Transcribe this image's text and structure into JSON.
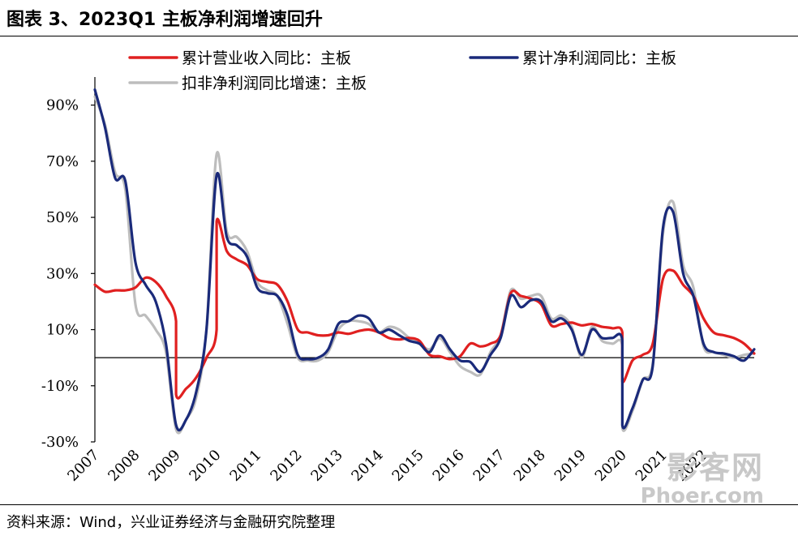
{
  "header": {
    "title": "图表 3、2023Q1 主板净利润增速回升"
  },
  "footer": {
    "source": "资料来源：Wind，兴业证券经济与金融研究院整理"
  },
  "watermark": {
    "cn": "影客网",
    "en": "Phoer.com"
  },
  "colors": {
    "revenue": "#e02020",
    "profit": "#1a2a7a",
    "deducted": "#bdbdbd",
    "axis": "#000000"
  },
  "chart_data": {
    "type": "line",
    "title": "",
    "xlabel": "",
    "ylabel": "",
    "ylim": [
      -30,
      100
    ],
    "xlim": [
      2007,
      2023.25
    ],
    "yticks": [
      -30,
      -10,
      10,
      30,
      50,
      70,
      90
    ],
    "ytick_labels": [
      "-30%",
      "-10%",
      "10%",
      "30%",
      "50%",
      "70%",
      "90%"
    ],
    "xtick_labels": [
      "2007",
      "2008",
      "2009",
      "2010",
      "2011",
      "2012",
      "2013",
      "2014",
      "2015",
      "2016",
      "2017",
      "2018",
      "2019",
      "2020",
      "2021",
      "2022"
    ],
    "legend": {
      "position": "top"
    },
    "series": [
      {
        "name": "累计营业收入同比：主板",
        "color_key": "revenue",
        "points": [
          [
            2007,
            26
          ],
          [
            2007.25,
            23.5
          ],
          [
            2007.5,
            24
          ],
          [
            2007.75,
            24
          ],
          [
            2008,
            25
          ],
          [
            2008.25,
            28.5
          ],
          [
            2008.5,
            27
          ],
          [
            2008.75,
            22
          ],
          [
            2009,
            13
          ],
          [
            2009,
            -13
          ],
          [
            2009.25,
            -11
          ],
          [
            2009.5,
            -7
          ],
          [
            2009.75,
            0
          ],
          [
            2010,
            10
          ],
          [
            2010,
            48.5
          ],
          [
            2010.25,
            38
          ],
          [
            2010.5,
            35
          ],
          [
            2010.75,
            33
          ],
          [
            2011,
            28
          ],
          [
            2011.25,
            27
          ],
          [
            2011.5,
            26
          ],
          [
            2011.75,
            20
          ],
          [
            2012,
            10
          ],
          [
            2012.25,
            9
          ],
          [
            2012.5,
            8
          ],
          [
            2012.75,
            8
          ],
          [
            2013,
            9
          ],
          [
            2013.25,
            8.5
          ],
          [
            2013.5,
            9.5
          ],
          [
            2013.75,
            10
          ],
          [
            2014,
            9
          ],
          [
            2014.25,
            7
          ],
          [
            2014.5,
            6.5
          ],
          [
            2014.75,
            7
          ],
          [
            2015,
            6
          ],
          [
            2015.25,
            1
          ],
          [
            2015.5,
            0.5
          ],
          [
            2015.75,
            -0.5
          ],
          [
            2016,
            0.5
          ],
          [
            2016.25,
            5
          ],
          [
            2016.5,
            4
          ],
          [
            2016.75,
            5
          ],
          [
            2017,
            8
          ],
          [
            2017.25,
            23
          ],
          [
            2017.5,
            22
          ],
          [
            2017.75,
            21
          ],
          [
            2018,
            19
          ],
          [
            2018.25,
            11.5
          ],
          [
            2018.5,
            12
          ],
          [
            2018.75,
            12.5
          ],
          [
            2019,
            11.5
          ],
          [
            2019.25,
            12
          ],
          [
            2019.5,
            11
          ],
          [
            2019.75,
            10.5
          ],
          [
            2020,
            9
          ],
          [
            2020,
            -8.5
          ],
          [
            2020.25,
            -1
          ],
          [
            2020.5,
            1
          ],
          [
            2020.75,
            5
          ],
          [
            2021,
            28
          ],
          [
            2021.25,
            31
          ],
          [
            2021.5,
            26
          ],
          [
            2021.75,
            22
          ],
          [
            2022,
            14
          ],
          [
            2022.25,
            9
          ],
          [
            2022.5,
            8
          ],
          [
            2022.75,
            7
          ],
          [
            2023,
            5
          ],
          [
            2023.25,
            1.5
          ]
        ]
      },
      {
        "name": "累计净利润同比：主板",
        "color_key": "profit",
        "points": [
          [
            2007,
            95.5
          ],
          [
            2007.25,
            82
          ],
          [
            2007.5,
            64
          ],
          [
            2007.75,
            63
          ],
          [
            2008,
            34
          ],
          [
            2008.25,
            26
          ],
          [
            2008.5,
            20
          ],
          [
            2008.75,
            5
          ],
          [
            2009,
            -24
          ],
          [
            2009.25,
            -22
          ],
          [
            2009.5,
            -12
          ],
          [
            2009.75,
            10
          ],
          [
            2010,
            65
          ],
          [
            2010.25,
            43
          ],
          [
            2010.5,
            40
          ],
          [
            2010.75,
            36
          ],
          [
            2011,
            25
          ],
          [
            2011.25,
            23
          ],
          [
            2011.5,
            22
          ],
          [
            2011.75,
            15
          ],
          [
            2012,
            1
          ],
          [
            2012.25,
            -0.5
          ],
          [
            2012.5,
            0
          ],
          [
            2012.75,
            3
          ],
          [
            2013,
            12
          ],
          [
            2013.25,
            13
          ],
          [
            2013.5,
            15
          ],
          [
            2013.75,
            14
          ],
          [
            2014,
            9
          ],
          [
            2014.25,
            10
          ],
          [
            2014.5,
            8
          ],
          [
            2014.75,
            6
          ],
          [
            2015,
            5
          ],
          [
            2015.25,
            2
          ],
          [
            2015.5,
            8
          ],
          [
            2015.75,
            3
          ],
          [
            2016,
            -1
          ],
          [
            2016.25,
            -1.5
          ],
          [
            2016.5,
            -5
          ],
          [
            2016.75,
            1
          ],
          [
            2017,
            7
          ],
          [
            2017.25,
            22
          ],
          [
            2017.5,
            18
          ],
          [
            2017.75,
            20.5
          ],
          [
            2018,
            20
          ],
          [
            2018.25,
            13
          ],
          [
            2018.5,
            14
          ],
          [
            2018.75,
            10
          ],
          [
            2019,
            1
          ],
          [
            2019.25,
            10
          ],
          [
            2019.5,
            7
          ],
          [
            2019.75,
            7
          ],
          [
            2020,
            6
          ],
          [
            2020,
            -24
          ],
          [
            2020.25,
            -18
          ],
          [
            2020.5,
            -8
          ],
          [
            2020.75,
            -3
          ],
          [
            2021,
            46
          ],
          [
            2021.25,
            52
          ],
          [
            2021.5,
            30
          ],
          [
            2021.75,
            22
          ],
          [
            2022,
            5
          ],
          [
            2022.25,
            2
          ],
          [
            2022.5,
            1.5
          ],
          [
            2022.75,
            0.5
          ],
          [
            2023,
            -1
          ],
          [
            2023.25,
            3
          ]
        ]
      },
      {
        "name": "扣非净利润同比增速：主板",
        "color_key": "deducted",
        "points": [
          [
            2007,
            93
          ],
          [
            2007.25,
            83
          ],
          [
            2007.5,
            66
          ],
          [
            2007.75,
            60
          ],
          [
            2008,
            19
          ],
          [
            2008.25,
            15
          ],
          [
            2008.5,
            10
          ],
          [
            2008.75,
            2
          ],
          [
            2009,
            -25.5
          ],
          [
            2009.25,
            -22
          ],
          [
            2009.5,
            -14
          ],
          [
            2009.75,
            10
          ],
          [
            2010,
            72.5
          ],
          [
            2010.25,
            45
          ],
          [
            2010.5,
            43
          ],
          [
            2010.75,
            38
          ],
          [
            2011,
            27
          ],
          [
            2011.25,
            24
          ],
          [
            2011.5,
            22
          ],
          [
            2011.75,
            12
          ],
          [
            2012,
            0
          ],
          [
            2012.25,
            -1
          ],
          [
            2012.5,
            -1
          ],
          [
            2012.75,
            2
          ],
          [
            2013,
            10
          ],
          [
            2013.25,
            13
          ],
          [
            2013.5,
            13
          ],
          [
            2013.75,
            12
          ],
          [
            2014,
            9
          ],
          [
            2014.25,
            11
          ],
          [
            2014.5,
            10
          ],
          [
            2014.75,
            7
          ],
          [
            2015,
            5
          ],
          [
            2015.25,
            3
          ],
          [
            2015.5,
            7
          ],
          [
            2015.75,
            2
          ],
          [
            2016,
            -3
          ],
          [
            2016.25,
            -5
          ],
          [
            2016.5,
            -6
          ],
          [
            2016.75,
            2
          ],
          [
            2017,
            8
          ],
          [
            2017.25,
            24
          ],
          [
            2017.5,
            21
          ],
          [
            2017.75,
            22
          ],
          [
            2018,
            22
          ],
          [
            2018.25,
            14
          ],
          [
            2018.5,
            15
          ],
          [
            2018.75,
            11
          ],
          [
            2019,
            0
          ],
          [
            2019.25,
            11
          ],
          [
            2019.5,
            6
          ],
          [
            2019.75,
            5
          ],
          [
            2020,
            4
          ],
          [
            2020,
            -25
          ],
          [
            2020.25,
            -19
          ],
          [
            2020.5,
            -8
          ],
          [
            2020.75,
            -2
          ],
          [
            2021,
            44
          ],
          [
            2021.25,
            55.5
          ],
          [
            2021.5,
            33
          ],
          [
            2021.75,
            25
          ],
          [
            2022,
            4
          ],
          [
            2022.25,
            2
          ],
          [
            2022.5,
            1
          ],
          [
            2022.75,
            0
          ],
          [
            2023,
            1
          ],
          [
            2023.25,
            1.5
          ]
        ]
      }
    ]
  }
}
